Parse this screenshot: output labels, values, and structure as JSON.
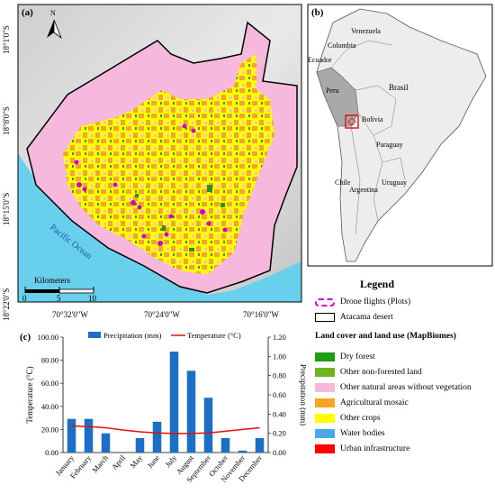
{
  "panel_a": {
    "label": "(a)",
    "north": "N",
    "ocean_label": "Pacific Ocean",
    "lat_ticks": [
      "18°1'0\"S",
      "18°8'0\"S",
      "18°15'0\"S",
      "18°22'0\"S"
    ],
    "lon_ticks": [
      "70°32'0\"W",
      "70°24'0\"W",
      "70°16'0\"W"
    ],
    "scalebar": {
      "title": "Kilometers",
      "ticks": [
        "0",
        "5",
        "10"
      ]
    },
    "colors": {
      "ocean": "#68d0ec",
      "desert": "#f7b8dd",
      "crops": "#ffff00",
      "mosaic": "#f2a531",
      "forest": "#2e8f1a",
      "drone": "#d000d0"
    }
  },
  "panel_b": {
    "label": "(b)",
    "countries": [
      "Venezuela",
      "Colombia",
      "Ecuador",
      "Peru",
      "Brasil",
      "Bolivia",
      "Paraguay",
      "Chile",
      "Argentina",
      "Uruguay"
    ]
  },
  "legend": {
    "title": "Legend",
    "drone": "Drone flights (Plots)",
    "desert": "Atacama desert",
    "landcover_title": "Land cover and land use (MapBiomes)",
    "items": [
      {
        "label": "Dry forest",
        "color": "#1f9d12"
      },
      {
        "label": "Other non-forested land",
        "color": "#6db51c"
      },
      {
        "label": "Other natural areas without vegetation",
        "color": "#f7b8dd"
      },
      {
        "label": "Agricultural mosaic",
        "color": "#f4a524"
      },
      {
        "label": "Other crops",
        "color": "#ffff00"
      },
      {
        "label": "Water bodies",
        "color": "#4aa8e8"
      },
      {
        "label": "Urban infrastructure",
        "color": "#ff0000"
      }
    ]
  },
  "panel_c": {
    "label": "(c)",
    "series_precip": "Precipitation (mm)",
    "series_temp": "Temperature (°C)",
    "ylabel_left": "Temperature (°C)",
    "ylabel_right": "Precipitation (mm)",
    "left_ticks": [
      "0.00",
      "20.00",
      "40.00",
      "60.00",
      "80.00",
      "100.00"
    ],
    "right_ticks": [
      "0.00",
      "0.20",
      "0.40",
      "0.60",
      "0.80",
      "1.00",
      "1.20"
    ]
  },
  "chart_data": {
    "type": "bar",
    "categories": [
      "January",
      "February",
      "March",
      "April",
      "May",
      "June",
      "July",
      "August",
      "September",
      "October",
      "November",
      "December"
    ],
    "series": [
      {
        "name": "Precipitation (mm)",
        "axis": "right",
        "type": "bar",
        "values": [
          0.35,
          0.35,
          0.2,
          0.0,
          0.15,
          0.32,
          1.05,
          0.85,
          0.57,
          0.15,
          0.02,
          0.15
        ]
      },
      {
        "name": "Temperature (°C)",
        "axis": "left",
        "type": "line",
        "values": [
          23.0,
          22.5,
          21.5,
          19.5,
          18.0,
          17.0,
          16.5,
          16.5,
          17.0,
          18.5,
          20.0,
          21.5
        ]
      }
    ],
    "ylim_left": [
      0,
      100
    ],
    "ylim_right": [
      0,
      1.2
    ],
    "ylabel": "Temperature (°C)",
    "y2label": "Precipitation (mm)"
  }
}
